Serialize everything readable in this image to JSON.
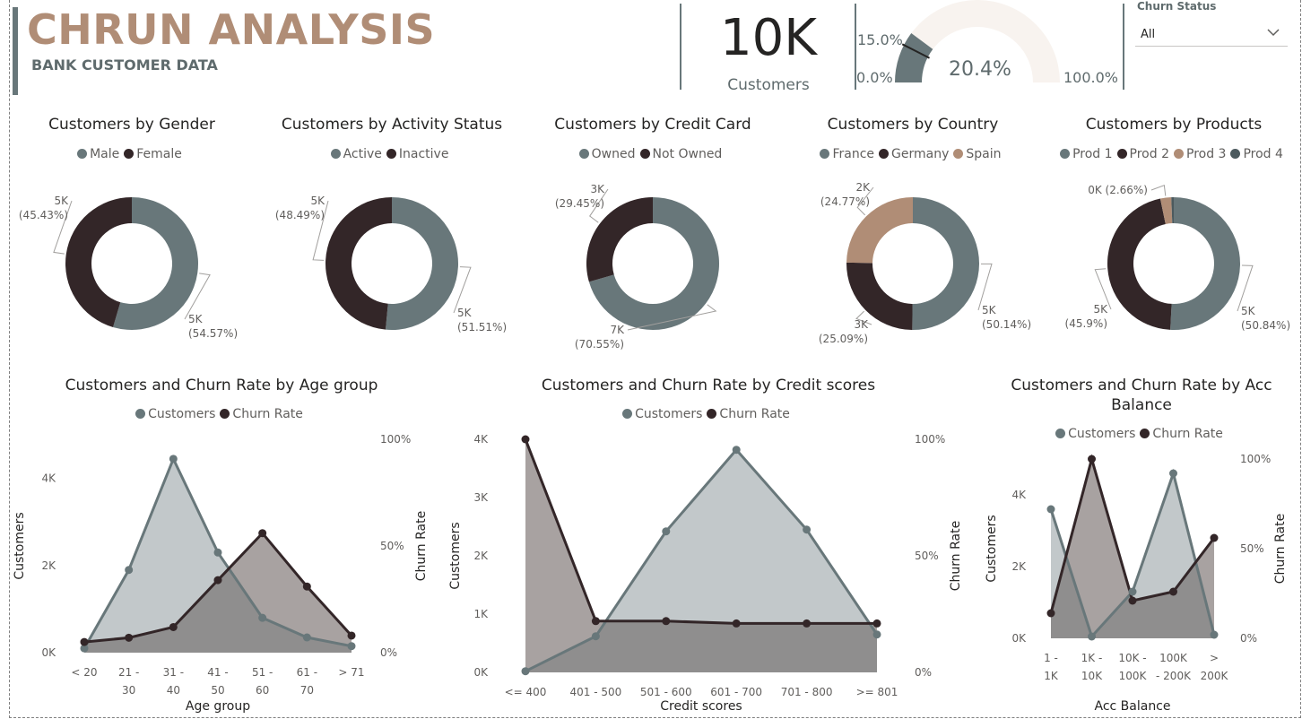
{
  "header": {
    "title": "CHRUN ANALYSIS",
    "subtitle": "BANK CUSTOMER DATA"
  },
  "kpi": {
    "value": "10K",
    "label": "Customers"
  },
  "gauge": {
    "value": 0.204,
    "value_label": "20.4%",
    "min_label": "0.0%",
    "max_label": "100.0%",
    "target_label": "15.0%",
    "target": 0.15
  },
  "slicer": {
    "title": "Churn Status",
    "selected": "All"
  },
  "colors": {
    "gray": "#68777a",
    "dark": "#332628",
    "tan": "#b08d76",
    "slate": "#4c5a5e",
    "area_light": "#c2c8ca",
    "area_dark": "#a8a2a1",
    "overlap": "#8f8e8e"
  },
  "chart_data": [
    {
      "type": "donut",
      "title": "Customers by Gender",
      "legend": [
        {
          "name": "Male",
          "color": "#68777a"
        },
        {
          "name": "Female",
          "color": "#332628"
        }
      ],
      "slices": [
        {
          "name": "Male",
          "value": 54.57,
          "label1": "5K",
          "label2": "(54.57%)",
          "color": "#68777a"
        },
        {
          "name": "Female",
          "value": 45.43,
          "label1": "5K",
          "label2": "(45.43%)",
          "color": "#332628"
        }
      ]
    },
    {
      "type": "donut",
      "title": "Customers by Activity Status",
      "legend": [
        {
          "name": "Active",
          "color": "#68777a"
        },
        {
          "name": "Inactive",
          "color": "#332628"
        }
      ],
      "slices": [
        {
          "name": "Active",
          "value": 51.51,
          "label1": "5K",
          "label2": "(51.51%)",
          "color": "#68777a"
        },
        {
          "name": "Inactive",
          "value": 48.49,
          "label1": "5K",
          "label2": "(48.49%)",
          "color": "#332628"
        }
      ]
    },
    {
      "type": "donut",
      "title": "Customers by Credit Card",
      "legend": [
        {
          "name": "Owned",
          "color": "#68777a"
        },
        {
          "name": "Not Owned",
          "color": "#332628"
        }
      ],
      "slices": [
        {
          "name": "Owned",
          "value": 70.55,
          "label1": "7K",
          "label2": "(70.55%)",
          "color": "#68777a"
        },
        {
          "name": "Not Owned",
          "value": 29.45,
          "label1": "3K",
          "label2": "(29.45%)",
          "color": "#332628"
        }
      ]
    },
    {
      "type": "donut",
      "title": "Customers by Country",
      "legend": [
        {
          "name": "France",
          "color": "#68777a"
        },
        {
          "name": "Germany",
          "color": "#332628"
        },
        {
          "name": "Spain",
          "color": "#b08d76"
        }
      ],
      "slices": [
        {
          "name": "France",
          "value": 50.14,
          "label1": "5K",
          "label2": "(50.14%)",
          "color": "#68777a"
        },
        {
          "name": "Germany",
          "value": 25.09,
          "label1": "3K",
          "label2": "(25.09%)",
          "color": "#332628"
        },
        {
          "name": "Spain",
          "value": 24.77,
          "label1": "2K",
          "label2": "(24.77%)",
          "color": "#b08d76"
        }
      ]
    },
    {
      "type": "donut",
      "title": "Customers by Products",
      "legend": [
        {
          "name": "Prod 1",
          "color": "#68777a"
        },
        {
          "name": "Prod 2",
          "color": "#332628"
        },
        {
          "name": "Prod 3",
          "color": "#b08d76"
        },
        {
          "name": "Prod 4",
          "color": "#4c5a5e"
        }
      ],
      "slices": [
        {
          "name": "Prod 1",
          "value": 50.84,
          "label1": "5K",
          "label2": "(50.84%)",
          "color": "#68777a"
        },
        {
          "name": "Prod 2",
          "value": 45.9,
          "label1": "5K",
          "label2": "(45.9%)",
          "color": "#332628"
        },
        {
          "name": "Prod 3",
          "value": 2.66,
          "label1": "0K (2.66%)",
          "label2": "",
          "color": "#b08d76"
        },
        {
          "name": "Prod 4",
          "value": 0.6,
          "label1": "",
          "label2": "",
          "color": "#4c5a5e"
        }
      ]
    },
    {
      "type": "area",
      "title": "Customers and Churn Rate by Age group",
      "legend": [
        {
          "name": "Customers",
          "color": "#68777a"
        },
        {
          "name": "Churn Rate",
          "color": "#332628"
        }
      ],
      "categories": [
        [
          "< 20",
          ""
        ],
        [
          "21 -",
          "30"
        ],
        [
          "31 -",
          "40"
        ],
        [
          "41 -",
          "50"
        ],
        [
          "51 -",
          "60"
        ],
        [
          "61 -",
          "70"
        ],
        [
          "> 71",
          ""
        ]
      ],
      "customers": [
        100,
        1900,
        4450,
        2300,
        800,
        350,
        150
      ],
      "churn_rate": [
        0.05,
        0.07,
        0.12,
        0.34,
        0.56,
        0.31,
        0.08
      ],
      "y_left_max": 4900,
      "y_left_ticks": [
        {
          "v": 0,
          "t": "0K"
        },
        {
          "v": 2000,
          "t": "2K"
        },
        {
          "v": 4000,
          "t": "4K"
        }
      ],
      "y_right_ticks": [
        {
          "v": 0,
          "t": "0%"
        },
        {
          "v": 0.5,
          "t": "50%"
        },
        {
          "v": 1,
          "t": "100%"
        }
      ],
      "xlabel": "Age group",
      "ylabel_left": "Customers",
      "ylabel_right": "Churn Rate"
    },
    {
      "type": "area",
      "title": "Customers and Churn Rate by Credit scores",
      "legend": [
        {
          "name": "Customers",
          "color": "#68777a"
        },
        {
          "name": "Churn Rate",
          "color": "#332628"
        }
      ],
      "categories": [
        [
          "<= 400",
          ""
        ],
        [
          "401 - 500",
          ""
        ],
        [
          "501 - 600",
          ""
        ],
        [
          "601 - 700",
          ""
        ],
        [
          "701 - 800",
          ""
        ],
        [
          ">= 801",
          ""
        ]
      ],
      "customers": [
        20,
        620,
        2420,
        3820,
        2450,
        650
      ],
      "churn_rate": [
        1.0,
        0.22,
        0.22,
        0.21,
        0.21,
        0.21
      ],
      "y_left_max": 4000,
      "y_left_ticks": [
        {
          "v": 0,
          "t": "0K"
        },
        {
          "v": 1000,
          "t": "1K"
        },
        {
          "v": 2000,
          "t": "2K"
        },
        {
          "v": 3000,
          "t": "3K"
        },
        {
          "v": 4000,
          "t": "4K"
        }
      ],
      "y_right_ticks": [
        {
          "v": 0,
          "t": "0%"
        },
        {
          "v": 0.5,
          "t": "50%"
        },
        {
          "v": 1,
          "t": "100%"
        }
      ],
      "xlabel": "Credit scores",
      "ylabel_left": "Customers",
      "ylabel_right": "Churn Rate"
    },
    {
      "type": "area",
      "title": "Customers and Churn Rate by Acc Balance",
      "title_lines": [
        "Customers and Churn Rate by Acc",
        "Balance"
      ],
      "legend": [
        {
          "name": "Customers",
          "color": "#68777a"
        },
        {
          "name": "Churn Rate",
          "color": "#332628"
        }
      ],
      "categories": [
        [
          "1 -",
          "1K"
        ],
        [
          "1K -",
          "10K"
        ],
        [
          "10K -",
          "100K"
        ],
        [
          "100K",
          "- 200K"
        ],
        [
          ">",
          "200K"
        ]
      ],
      "customers": [
        3600,
        50,
        1300,
        4600,
        100
      ],
      "churn_rate": [
        0.14,
        1.0,
        0.21,
        0.26,
        0.56
      ],
      "y_left_max": 5000,
      "y_left_ticks": [
        {
          "v": 0,
          "t": "0K"
        },
        {
          "v": 2000,
          "t": "2K"
        },
        {
          "v": 4000,
          "t": "4K"
        }
      ],
      "y_right_ticks": [
        {
          "v": 0,
          "t": "0%"
        },
        {
          "v": 0.5,
          "t": "50%"
        },
        {
          "v": 1,
          "t": "100%"
        }
      ],
      "xlabel": "Acc Balance",
      "ylabel_left": "Customers",
      "ylabel_right": "Churn Rate"
    }
  ]
}
